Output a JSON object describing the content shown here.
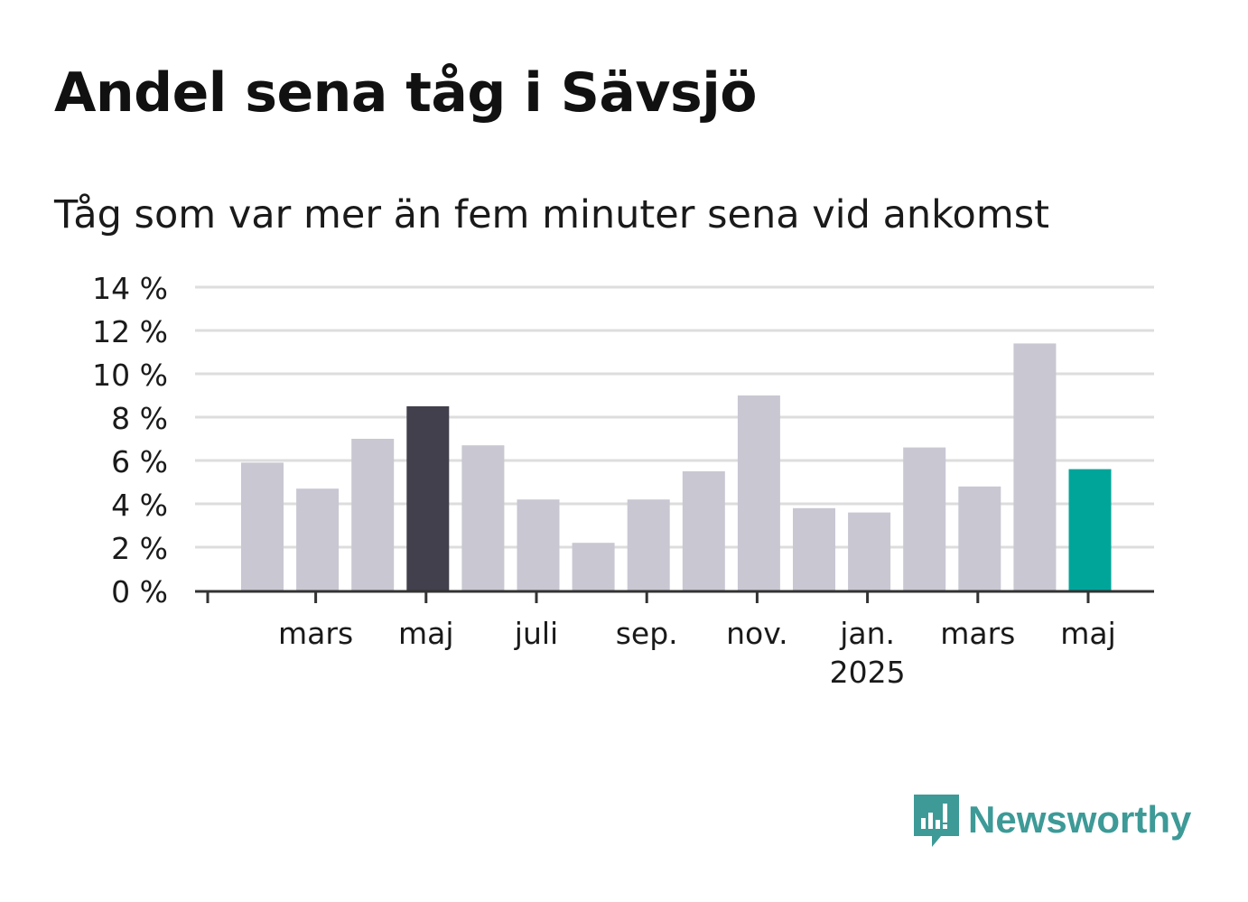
{
  "title": "Andel sena tåg i Sävsjö",
  "subtitle": "Tåg som var mer än fem minuter sena vid ankomst",
  "logo_text": "Newsworthy",
  "colors": {
    "bar_default": "#c8c7d2",
    "bar_highlight_dark": "#42404c",
    "bar_latest": "#00a59a",
    "grid": "#dddddd",
    "axis": "#333333",
    "text": "#1a1a1a",
    "logo": "#3d9a97"
  },
  "chart_data": {
    "type": "bar",
    "ylim": [
      0,
      14
    ],
    "yticks": [
      "0 %",
      "2 %",
      "4 %",
      "6 %",
      "8 %",
      "10 %",
      "12 %",
      "14 %"
    ],
    "x_tick_labels": [
      "mars",
      "maj",
      "juli",
      "sep.",
      "nov.",
      "jan.",
      "mars",
      "maj"
    ],
    "x_tick_sublabels": [
      "",
      "",
      "",
      "",
      "",
      "2025",
      "",
      ""
    ],
    "values": [
      5.9,
      4.7,
      7.0,
      8.5,
      6.7,
      4.2,
      2.2,
      4.2,
      5.5,
      9.0,
      3.8,
      3.6,
      6.6,
      4.8,
      11.4,
      5.6
    ],
    "highlight": {
      "dark_index": 3,
      "latest_index": 15
    },
    "grid": true,
    "legend": "none"
  }
}
